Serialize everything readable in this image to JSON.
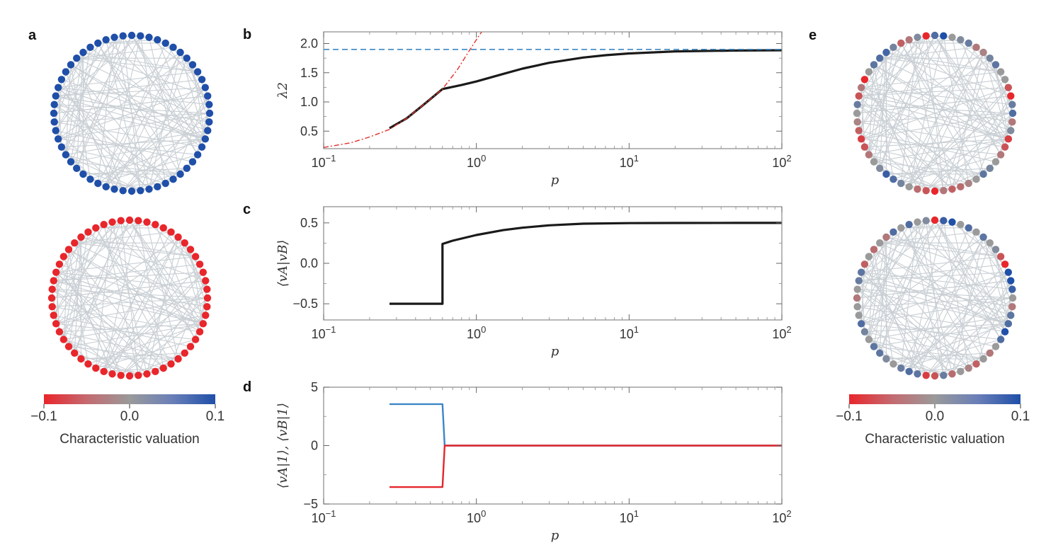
{
  "panel_labels": {
    "a": "a",
    "b": "b",
    "c": "c",
    "d": "d",
    "e": "e"
  },
  "colors": {
    "blue": "#1f4fa8",
    "red": "#e8262b",
    "gray": "#9a9a9a",
    "edge": "#c9cfd4",
    "curve": "#1a1a1a",
    "dash_blue": "#3b88c4",
    "dash_red": "#e0302b",
    "line_blue": "#3d86c6",
    "line_red": "#e3262b"
  },
  "colorbar_a": {
    "min_label": "−0.1",
    "mid_label": "0.0",
    "max_label": "0.1",
    "title": "Characteristic valuation"
  },
  "colorbar_e": {
    "min_label": "−0.1",
    "mid_label": "0.0",
    "max_label": "0.1",
    "title": "Characteristic valuation"
  },
  "chart_data": [
    {
      "panel": "b",
      "type": "line",
      "xscale": "log",
      "xlim": [
        0.1,
        100
      ],
      "ylim": [
        0.2,
        2.2
      ],
      "xlabel": "p",
      "ylabel": "λ2",
      "xtick_labels": [
        "10−1",
        "100",
        "101",
        "102"
      ],
      "yticks": [
        0.5,
        1.0,
        1.5,
        2.0
      ],
      "ytick_labels": [
        "0.5",
        "1.0",
        "1.5",
        "2.0"
      ],
      "series": [
        {
          "name": "lambda2",
          "style": "solid-black",
          "x": [
            0.27,
            0.35,
            0.45,
            0.6,
            0.8,
            1,
            1.5,
            2,
            3,
            5,
            7,
            10,
            20,
            50,
            100
          ],
          "y": [
            0.55,
            0.72,
            0.95,
            1.22,
            1.29,
            1.35,
            1.48,
            1.57,
            1.67,
            1.76,
            1.8,
            1.83,
            1.865,
            1.88,
            1.885
          ]
        },
        {
          "name": "asymptote",
          "style": "dashed-blue",
          "x": [
            0.1,
            100
          ],
          "y": [
            1.9,
            1.9
          ]
        },
        {
          "name": "low-p branch",
          "style": "dashdot-red",
          "x": [
            0.1,
            0.15,
            0.2,
            0.27,
            0.35,
            0.45,
            0.6,
            0.75,
            0.9,
            1.05,
            1.1
          ],
          "y": [
            0.22,
            0.3,
            0.4,
            0.53,
            0.72,
            0.95,
            1.22,
            1.55,
            1.88,
            2.15,
            2.22
          ]
        }
      ]
    },
    {
      "panel": "c",
      "type": "line",
      "xscale": "log",
      "xlim": [
        0.1,
        100
      ],
      "ylim": [
        -0.7,
        0.7
      ],
      "xlabel": "p",
      "ylabel": "⟨vA|vB⟩",
      "xtick_labels": [
        "10−1",
        "100",
        "101",
        "102"
      ],
      "yticks": [
        -0.5,
        0.0,
        0.5
      ],
      "ytick_labels": [
        "−0.5",
        "0.0",
        "0.5"
      ],
      "series": [
        {
          "name": "overlap",
          "style": "solid-black",
          "x": [
            0.27,
            0.6,
            0.6,
            0.7,
            1,
            1.5,
            2,
            3,
            5,
            10,
            20,
            50,
            100
          ],
          "y": [
            -0.5,
            -0.5,
            0.24,
            0.28,
            0.35,
            0.41,
            0.44,
            0.47,
            0.49,
            0.497,
            0.499,
            0.5,
            0.5
          ]
        }
      ]
    },
    {
      "panel": "d",
      "type": "line",
      "xscale": "log",
      "xlim": [
        0.1,
        100
      ],
      "ylim": [
        -5,
        5
      ],
      "xlabel": "p",
      "ylabel": "⟨vA|1⟩, ⟨vB|1⟩",
      "xtick_labels": [
        "10−1",
        "100",
        "101",
        "102"
      ],
      "yticks": [
        -5,
        0,
        5
      ],
      "ytick_labels": [
        "−5",
        "0",
        "5"
      ],
      "series": [
        {
          "name": "⟨vA|1⟩",
          "style": "solid-blue",
          "x": [
            0.27,
            0.6,
            0.62,
            100
          ],
          "y": [
            3.55,
            3.55,
            0.0,
            0.0
          ]
        },
        {
          "name": "⟨vB|1⟩",
          "style": "solid-red",
          "x": [
            0.27,
            0.6,
            0.62,
            100
          ],
          "y": [
            -3.55,
            -3.55,
            0.0,
            0.0
          ]
        }
      ]
    }
  ],
  "networks": {
    "node_count": 56,
    "a_top": {
      "uniform_value": 0.1
    },
    "a_bottom": {
      "uniform_value": -0.1
    },
    "e_top": {
      "values": [
        0.06,
        0.1,
        0.0,
        0.02,
        0.04,
        -0.03,
        -0.02,
        0.03,
        0.05,
        0.0,
        0.0,
        -0.06,
        -0.1,
        0.04,
        0.06,
        -0.03,
        0.02,
        -0.08,
        -0.06,
        -0.03,
        0.0,
        0.03,
        0.05,
        0.0,
        -0.02,
        -0.04,
        -0.05,
        -0.03,
        -0.1,
        -0.06,
        -0.04,
        0.0,
        0.03,
        0.06,
        0.08,
        0.02,
        0.0,
        -0.03,
        -0.06,
        -0.08,
        -0.05,
        -0.02,
        0.0,
        0.04,
        -0.06,
        -0.03,
        -0.1,
        0.0,
        0.05,
        0.06,
        0.07,
        0.03,
        -0.05,
        -0.03,
        0.02,
        -0.1
      ]
    },
    "e_bottom": {
      "values": [
        -0.1,
        0.08,
        0.1,
        0.0,
        0.06,
        0.0,
        0.05,
        0.0,
        0.02,
        -0.06,
        -0.1,
        0.1,
        0.1,
        0.08,
        0.0,
        -0.03,
        0.05,
        0.06,
        0.1,
        0.06,
        0.0,
        -0.03,
        0.0,
        -0.05,
        -0.02,
        0.0,
        -0.04,
        0.04,
        -0.06,
        -0.08,
        0.05,
        0.06,
        0.04,
        0.0,
        0.02,
        0.05,
        0.05,
        0.0,
        0.03,
        0.06,
        0.0,
        0.0,
        -0.03,
        0.0,
        0.04,
        0.05,
        -0.05,
        0.0,
        -0.04,
        0.0,
        -0.03,
        0.06,
        0.0,
        0.06,
        0.0,
        0.02
      ]
    }
  }
}
